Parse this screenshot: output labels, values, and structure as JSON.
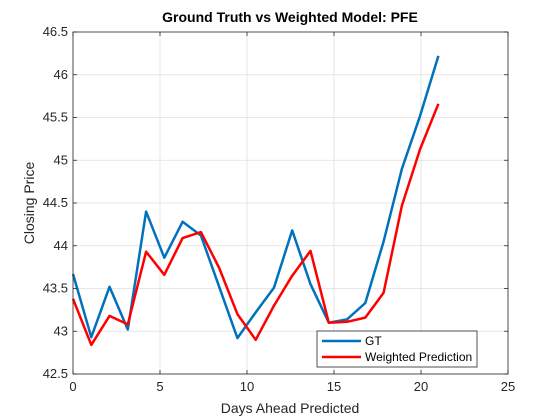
{
  "chart_data": {
    "type": "line",
    "title": "Ground Truth vs Weighted Model: PFE",
    "xlabel": "Days Ahead Predicted",
    "ylabel": "Closing Price",
    "xlim": [
      0,
      25
    ],
    "ylim": [
      42.5,
      46.5
    ],
    "xticks": [
      0,
      5,
      10,
      15,
      20,
      25
    ],
    "xtick_labels": [
      "0",
      "5",
      "10",
      "15",
      "20",
      "25"
    ],
    "yticks": [
      42.5,
      43,
      43.5,
      44,
      44.5,
      45,
      45.5,
      46,
      46.5
    ],
    "ytick_labels": [
      "42.5",
      "43",
      "43.5",
      "44",
      "44.5",
      "45",
      "45.5",
      "46",
      "46.5"
    ],
    "grid": true,
    "legend_position": "bottom-right",
    "series": [
      {
        "name": "GT",
        "color": "#0072BD",
        "x": [
          0,
          1.05,
          2.1,
          3.15,
          4.2,
          5.25,
          6.3,
          7.35,
          8.4,
          9.45,
          10.5,
          11.55,
          12.6,
          13.65,
          14.7,
          15.75,
          16.8,
          17.85,
          18.9,
          19.95,
          21
        ],
        "y": [
          43.67,
          42.93,
          43.52,
          43.02,
          44.4,
          43.86,
          44.28,
          44.12,
          43.52,
          42.92,
          43.22,
          43.51,
          44.18,
          43.55,
          43.1,
          43.14,
          43.33,
          44.05,
          44.9,
          45.52,
          46.22
        ]
      },
      {
        "name": "Weighted Prediction",
        "color": "#FF0000",
        "x": [
          0,
          1.05,
          2.1,
          3.15,
          4.2,
          5.25,
          6.3,
          7.35,
          8.4,
          9.45,
          10.5,
          11.55,
          12.6,
          13.65,
          14.7,
          15.75,
          16.8,
          17.85,
          18.9,
          19.95,
          21
        ],
        "y": [
          43.38,
          42.84,
          43.18,
          43.08,
          43.93,
          43.66,
          44.09,
          44.16,
          43.74,
          43.2,
          42.9,
          43.3,
          43.65,
          43.94,
          43.1,
          43.11,
          43.16,
          43.45,
          44.47,
          45.13,
          45.66
        ]
      }
    ]
  }
}
